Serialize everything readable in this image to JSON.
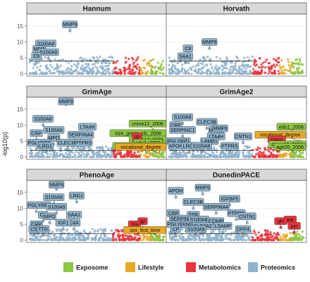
{
  "colors": {
    "Exposome": "#8dc63f",
    "Lifestyle": "#e8a826",
    "Metabolomics": "#e8343a",
    "Proteomics": "#8fb3cc",
    "strip": "#d9d9d9",
    "panel_bg": "#ffffff",
    "grid": "#ebebeb",
    "threshold": "#000000"
  },
  "chart_data": {
    "type": "scatter",
    "subtype": "manhattan",
    "ylabel": "-log10(p)",
    "legend_position": "bottom",
    "legend": [
      "Exposome",
      "Lifestyle",
      "Metabolomics",
      "Proteomics"
    ],
    "facets": [
      {
        "title": "Hannum",
        "ylim": [
          0,
          18
        ],
        "yticks": [
          0,
          5,
          10,
          15
        ],
        "threshold": 4,
        "labels": [
          {
            "text": "MMP9",
            "x": 0.3,
            "y": 13.5,
            "cat": "Proteomics"
          },
          {
            "text": "S100A8",
            "x": 0.12,
            "y": 7.5,
            "cat": "Proteomics"
          },
          {
            "text": "MPO",
            "x": 0.07,
            "y": 5.8,
            "cat": "Proteomics"
          },
          {
            "text": "C9",
            "x": 0.05,
            "y": 3.6,
            "cat": "Proteomics"
          },
          {
            "text": "S100A9",
            "x": 0.14,
            "y": 4.8,
            "cat": "Proteomics"
          }
        ]
      },
      {
        "title": "Horvath",
        "ylim": [
          0,
          18
        ],
        "yticks": [
          0,
          5,
          10,
          15
        ],
        "threshold": 4,
        "labels": [
          {
            "text": "MMP9",
            "x": 0.3,
            "y": 8.0,
            "cat": "Proteomics"
          },
          {
            "text": "C9",
            "x": 0.14,
            "y": 6.0,
            "cat": "Proteomics"
          },
          {
            "text": "SAA1",
            "x": 0.12,
            "y": 3.5,
            "cat": "Proteomics"
          }
        ]
      },
      {
        "title": "GrimAge",
        "ylim": [
          0,
          18
        ],
        "yticks": [
          0,
          5,
          10,
          15
        ],
        "threshold": 2,
        "labels": [
          {
            "text": "MMP9",
            "x": 0.27,
            "y": 16.5,
            "cat": "Proteomics"
          },
          {
            "text": "crime12_2006",
            "x": 0.92,
            "y": 8.5,
            "cat": "Exposome"
          },
          {
            "text": "S100A8",
            "x": 0.1,
            "y": 10.0,
            "cat": "Proteomics"
          },
          {
            "text": "size_green_clc_2006",
            "x": 0.93,
            "y": 5.5,
            "cat": "Exposome"
          },
          {
            "text": "S100A9",
            "x": 0.18,
            "y": 6.5,
            "cat": "Proteomics"
          },
          {
            "text": "LTA4H",
            "x": 0.43,
            "y": 7.5,
            "cat": "Proteomics"
          },
          {
            "text": "CRP",
            "x": 0.05,
            "y": 5.5,
            "cat": "Proteomics"
          },
          {
            "text": "SERPINA4",
            "x": 0.38,
            "y": 5.0,
            "cat": "Proteomics"
          },
          {
            "text": "MPO",
            "x": 0.18,
            "y": 4.0,
            "cat": "Proteomics"
          },
          {
            "text": "crime14_2006",
            "x": 0.9,
            "y": 3.5,
            "cat": "Exposome"
          },
          {
            "text": "gp",
            "x": 0.8,
            "y": 4.5,
            "cat": "Metabolomics"
          },
          {
            "text": "PGLYRP1",
            "x": 0.05,
            "y": 2.5,
            "cat": "Proteomics"
          },
          {
            "text": "CLEC3B",
            "x": 0.28,
            "y": 2.5,
            "cat": "Proteomics"
          },
          {
            "text": "PTPRS",
            "x": 0.4,
            "y": 2.5,
            "cat": "Proteomics"
          },
          {
            "text": "edu1_2006",
            "x": 0.88,
            "y": 2.5,
            "cat": "Exposome"
          },
          {
            "text": "LRG1",
            "x": 0.12,
            "y": 1.5,
            "cat": "Proteomics"
          },
          {
            "text": "size_blue_clc_2006",
            "x": 0.87,
            "y": 1.5,
            "cat": "Exposome"
          },
          {
            "text": "vocational_degree",
            "x": 0.96,
            "y": 1.2,
            "cat": "Lifestyle"
          }
        ]
      },
      {
        "title": "GrimAge2",
        "ylim": [
          0,
          18
        ],
        "yticks": [
          0,
          5,
          10,
          15
        ],
        "threshold": 2,
        "labels": [
          {
            "text": "S100A9",
            "x": 0.1,
            "y": 10.5,
            "cat": "Proteomics"
          },
          {
            "text": "CLEC3B",
            "x": 0.28,
            "y": 9.0,
            "cat": "Proteomics"
          },
          {
            "text": "CRP",
            "x": 0.05,
            "y": 8.0,
            "cat": "Proteomics"
          },
          {
            "text": "edu1_2006",
            "x": 0.92,
            "y": 7.5,
            "cat": "Exposome"
          },
          {
            "text": "MMP2",
            "x": 0.35,
            "y": 6.5,
            "cat": "Proteomics"
          },
          {
            "text": "MMP9",
            "x": 0.38,
            "y": 7.0,
            "cat": "Proteomics"
          },
          {
            "text": "SERPINC1",
            "x": 0.1,
            "y": 6.5,
            "cat": "Proteomics"
          },
          {
            "text": "vocational_degree",
            "x": 0.97,
            "y": 5.0,
            "cat": "Lifestyle"
          },
          {
            "text": "LTA4H",
            "x": 0.35,
            "y": 4.5,
            "cat": "Proteomics"
          },
          {
            "text": "CNTN1",
            "x": 0.55,
            "y": 4.5,
            "cat": "Proteomics"
          },
          {
            "text": "LAMB1",
            "x": 0.3,
            "y": 3.0,
            "cat": "Proteomics"
          },
          {
            "text": "PGLYRP1",
            "x": 0.05,
            "y": 3.0,
            "cat": "Proteomics"
          },
          {
            "text": "cresa",
            "x": 0.8,
            "y": 3.5,
            "cat": "Metabolomics"
          },
          {
            "text": "APOH",
            "x": 0.05,
            "y": 1.5,
            "cat": "Proteomics"
          },
          {
            "text": "LRG1",
            "x": 0.15,
            "y": 1.5,
            "cat": "Proteomics"
          },
          {
            "text": "S100A8",
            "x": 0.24,
            "y": 1.5,
            "cat": "Proteomics"
          },
          {
            "text": "PTPRS",
            "x": 0.45,
            "y": 1.5,
            "cat": "Proteomics"
          },
          {
            "text": "crime12_2006",
            "x": 0.97,
            "y": 2.0,
            "cat": "Exposome"
          },
          {
            "text": "age20_2006",
            "x": 0.93,
            "y": 1.2,
            "cat": "Exposome"
          }
        ]
      },
      {
        "title": "PhenoAge",
        "ylim": [
          0,
          18
        ],
        "yticks": [
          0,
          5,
          10,
          15
        ],
        "threshold": 2,
        "labels": [
          {
            "text": "MMP9",
            "x": 0.2,
            "y": 16.0,
            "cat": "Proteomics"
          },
          {
            "text": "S100A8",
            "x": 0.18,
            "y": 11.5,
            "cat": "Proteomics"
          },
          {
            "text": "LRG1",
            "x": 0.35,
            "y": 12.0,
            "cat": "Proteomics"
          },
          {
            "text": "PGLYRP1",
            "x": 0.05,
            "y": 9.0,
            "cat": "Proteomics"
          },
          {
            "text": "S100A9",
            "x": 0.2,
            "y": 8.5,
            "cat": "Proteomics"
          },
          {
            "text": "C9",
            "x": 0.1,
            "y": 6.0,
            "cat": "Proteomics"
          },
          {
            "text": "MPO",
            "x": 0.15,
            "y": 5.5,
            "cat": "Proteomics"
          },
          {
            "text": "SAA1",
            "x": 0.33,
            "y": 6.0,
            "cat": "Proteomics"
          },
          {
            "text": "C4A",
            "x": 0.33,
            "y": 3.5,
            "cat": "Proteomics"
          },
          {
            "text": "IGF1",
            "x": 0.25,
            "y": 3.5,
            "cat": "Proteomics"
          },
          {
            "text": "CRP",
            "x": 0.05,
            "y": 3.0,
            "cat": "Proteomics"
          },
          {
            "text": "his",
            "x": 0.78,
            "y": 3.0,
            "cat": "Metabolomics"
          },
          {
            "text": "gp",
            "x": 0.84,
            "y": 4.0,
            "cat": "Metabolomics"
          },
          {
            "text": "C5",
            "x": 0.03,
            "y": 1.5,
            "cat": "Proteomics"
          },
          {
            "text": "TTR",
            "x": 0.1,
            "y": 1.5,
            "cat": "Proteomics"
          },
          {
            "text": "sex_first_time",
            "x": 0.96,
            "y": 1.2,
            "cat": "Lifestyle"
          }
        ]
      },
      {
        "title": "DunedinPACE",
        "ylim": [
          0,
          18
        ],
        "yticks": [
          0,
          5,
          10,
          15
        ],
        "threshold": 2,
        "labels": [
          {
            "text": "APOH",
            "x": 0.05,
            "y": 13.5,
            "cat": "Proteomics"
          },
          {
            "text": "MMP9",
            "x": 0.25,
            "y": 14.5,
            "cat": "Proteomics"
          },
          {
            "text": "IGFBP5",
            "x": 0.45,
            "y": 11.0,
            "cat": "Proteomics"
          },
          {
            "text": "CLEC3B",
            "x": 0.18,
            "y": 10.0,
            "cat": "Proteomics"
          },
          {
            "text": "SERPINA4",
            "x": 0.35,
            "y": 8.5,
            "cat": "Proteomics"
          },
          {
            "text": "PTPRS",
            "x": 0.5,
            "y": 6.5,
            "cat": "Proteomics"
          },
          {
            "text": "CRP",
            "x": 0.03,
            "y": 6.5,
            "cat": "Proteomics"
          },
          {
            "text": "TTR",
            "x": 0.18,
            "y": 6.0,
            "cat": "Proteomics"
          },
          {
            "text": "CNTN1",
            "x": 0.58,
            "y": 5.5,
            "cat": "Proteomics"
          },
          {
            "text": "SERPINC1",
            "x": 0.1,
            "y": 4.8,
            "cat": "Proteomics"
          },
          {
            "text": "S100A8",
            "x": 0.22,
            "y": 4.5,
            "cat": "Proteomics"
          },
          {
            "text": "COMP",
            "x": 0.35,
            "y": 4.0,
            "cat": "Proteomics"
          },
          {
            "text": "ala",
            "x": 0.9,
            "y": 4.5,
            "cat": "Metabolomics"
          },
          {
            "text": "gln",
            "x": 0.83,
            "y": 4.0,
            "cat": "Metabolomics"
          },
          {
            "text": "PGLYRP1",
            "x": 0.05,
            "y": 3.0,
            "cat": "Proteomics"
          },
          {
            "text": "KNG1",
            "x": 0.15,
            "y": 3.0,
            "cat": "Proteomics"
          },
          {
            "text": "SLC3A2",
            "x": 0.25,
            "y": 2.5,
            "cat": "Proteomics"
          },
          {
            "text": "LSAMP",
            "x": 0.4,
            "y": 2.5,
            "cat": "Proteomics"
          },
          {
            "text": "pyr",
            "x": 0.93,
            "y": 2.5,
            "cat": "Metabolomics"
          },
          {
            "text": "CP",
            "x": 0.05,
            "y": 1.5,
            "cat": "Proteomics"
          },
          {
            "text": "S100A9",
            "x": 0.2,
            "y": 1.5,
            "cat": "Proteomics"
          },
          {
            "text": "DPP4",
            "x": 0.55,
            "y": 1.5,
            "cat": "Proteomics"
          }
        ]
      }
    ]
  }
}
